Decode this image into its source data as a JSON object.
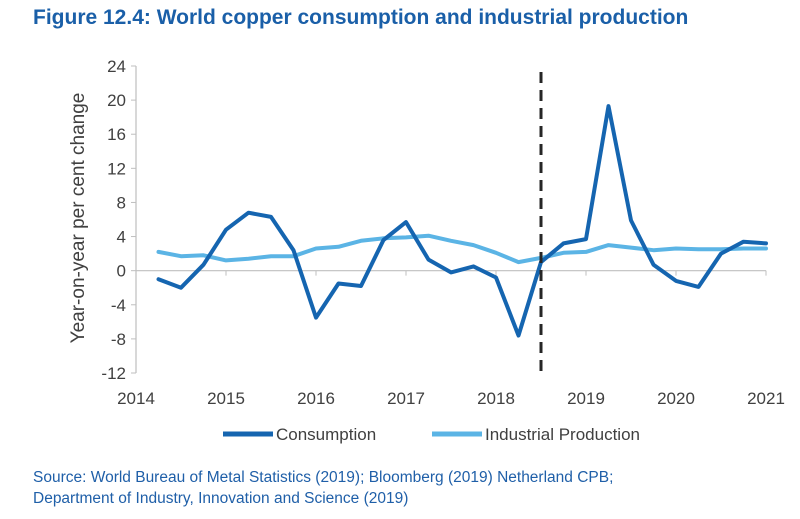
{
  "title": "Figure 12.4: World copper consumption and industrial production",
  "source": {
    "line1": "Source: World Bureau of Metal Statistics (2019); Bloomberg (2019) Netherland CPB;",
    "line2": "Department of Industry, Innovation and Science (2019)"
  },
  "colors": {
    "title": "#1a5fa8",
    "consumption": "#1565b0",
    "industrial_production": "#5bb4e5",
    "forecast_line": "#262626",
    "axis": "#bfbfbf",
    "text": "#404040"
  },
  "chart_data": {
    "type": "line",
    "title": "Figure 12.4: World copper consumption and industrial production",
    "xlabel": "",
    "ylabel": "Year-on-year per cent change",
    "xlim": [
      2014,
      2021
    ],
    "ylim": [
      -12,
      24
    ],
    "x_ticks": [
      "2014",
      "2015",
      "2016",
      "2017",
      "2018",
      "2019",
      "2020",
      "2021"
    ],
    "y_ticks": [
      "24",
      "20",
      "16",
      "12",
      "8",
      "4",
      "0",
      "-4",
      "-8",
      "-12"
    ],
    "grid": false,
    "legend": "bottom",
    "forecast_divider_x": 2018.5,
    "x": [
      2014.25,
      2014.5,
      2014.75,
      2015.0,
      2015.25,
      2015.5,
      2015.75,
      2016.0,
      2016.25,
      2016.5,
      2016.75,
      2017.0,
      2017.25,
      2017.5,
      2017.75,
      2018.0,
      2018.25,
      2018.5,
      2018.75,
      2019.0,
      2019.25,
      2019.5,
      2019.75,
      2020.0,
      2020.25,
      2020.5,
      2020.75,
      2021.0
    ],
    "series": [
      {
        "name": "Consumption",
        "values": [
          -1.0,
          -2.0,
          0.7,
          4.8,
          6.8,
          6.3,
          2.4,
          -5.5,
          -1.5,
          -1.8,
          3.6,
          5.7,
          1.3,
          -0.2,
          0.5,
          -0.8,
          -7.6,
          1.0,
          3.2,
          3.7,
          19.3,
          5.9,
          0.7,
          -1.2,
          -1.9,
          2.0,
          3.4,
          3.2
        ]
      },
      {
        "name": "Industrial Production",
        "values": [
          2.2,
          1.7,
          1.8,
          1.2,
          1.4,
          1.7,
          1.7,
          2.6,
          2.8,
          3.5,
          3.8,
          3.9,
          4.1,
          3.5,
          3.0,
          2.1,
          1.0,
          1.5,
          2.1,
          2.2,
          3.0,
          2.7,
          2.4,
          2.6,
          2.5,
          2.5,
          2.6,
          2.6
        ]
      }
    ]
  }
}
